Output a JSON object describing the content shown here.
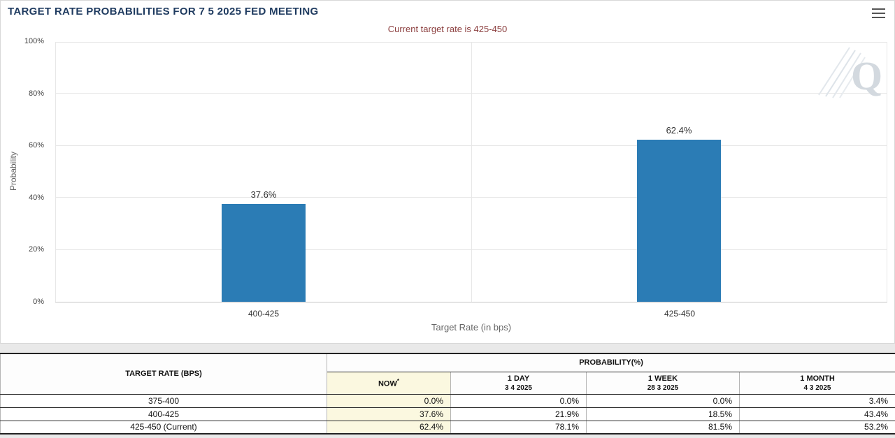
{
  "chart": {
    "y_ticks": [
      "100%",
      "80%",
      "60%",
      "40%",
      "20%",
      "0%"
    ],
    "watermark_letter": "Q"
  },
  "chart_data": {
    "type": "bar",
    "title": "TARGET RATE PROBABILITIES FOR 7 5 2025 FED MEETING",
    "subtitle": "Current target rate is 425-450",
    "categories": [
      "400-425",
      "425-450"
    ],
    "values": [
      37.6,
      62.4
    ],
    "data_labels": [
      "37.6%",
      "62.4%"
    ],
    "xlabel": "Target Rate (in bps)",
    "ylabel": "Probability",
    "ylim": [
      0,
      100
    ],
    "y_tick_step": 20,
    "grid": true,
    "legend": false,
    "bar_color": "#2b7cb5"
  },
  "table": {
    "corner_header": "TARGET RATE (BPS)",
    "group_header": "PROBABILITY(%)",
    "columns": [
      {
        "line1": "NOW",
        "sup": "*",
        "line2": ""
      },
      {
        "line1": "1 DAY",
        "line2": "3 4 2025"
      },
      {
        "line1": "1 WEEK",
        "line2": "28 3 2025"
      },
      {
        "line1": "1 MONTH",
        "line2": "4 3 2025"
      }
    ],
    "rows": [
      {
        "rate": "375-400",
        "values": [
          "0.0%",
          "0.0%",
          "0.0%",
          "3.4%"
        ]
      },
      {
        "rate": "400-425",
        "values": [
          "37.6%",
          "21.9%",
          "18.5%",
          "43.4%"
        ]
      },
      {
        "rate": "425-450 (Current)",
        "values": [
          "62.4%",
          "78.1%",
          "81.5%",
          "53.2%"
        ]
      }
    ]
  },
  "colors": {
    "bar": "#2b7cb5",
    "title_text": "#1e3a5f",
    "subtitle_text": "#8b3e3e",
    "now_column_bg": "#fbf8e0",
    "grid": "#e7e7e7"
  }
}
